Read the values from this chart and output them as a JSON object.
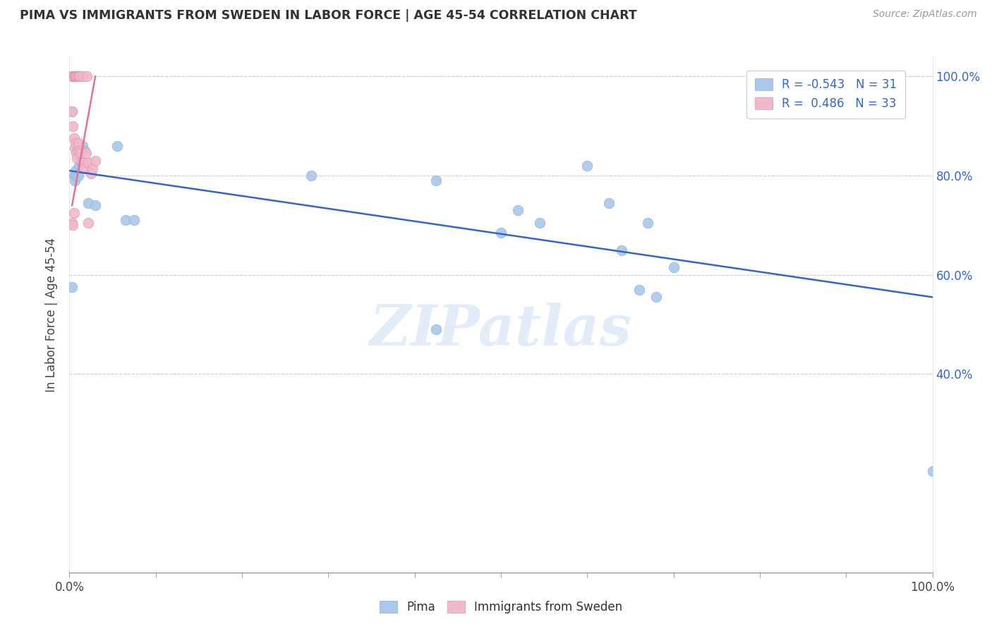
{
  "title": "PIMA VS IMMIGRANTS FROM SWEDEN IN LABOR FORCE | AGE 45-54 CORRELATION CHART",
  "source": "Source: ZipAtlas.com",
  "ylabel": "In Labor Force | Age 45-54",
  "legend_blue_label": "Pima",
  "legend_pink_label": "Immigrants from Sweden",
  "blue_R": -0.543,
  "blue_N": 31,
  "pink_R": 0.486,
  "pink_N": 33,
  "xlim": [
    0,
    1
  ],
  "ylim": [
    0,
    1.04
  ],
  "xticks": [
    0,
    0.1,
    0.2,
    0.3,
    0.4,
    0.5,
    0.6,
    0.7,
    0.8,
    0.9,
    1.0
  ],
  "yticks": [
    0.4,
    0.6,
    0.8,
    1.0
  ],
  "xticklabels_show": [
    "0.0%",
    "100.0%"
  ],
  "yticklabels_right": [
    "40.0%",
    "60.0%",
    "80.0%",
    "100.0%"
  ],
  "watermark": "ZIPatlas",
  "blue_dots": [
    [
      0.003,
      0.93
    ],
    [
      0.005,
      0.8
    ],
    [
      0.006,
      0.79
    ],
    [
      0.007,
      0.81
    ],
    [
      0.008,
      0.8
    ],
    [
      0.009,
      0.85
    ],
    [
      0.01,
      0.8
    ],
    [
      0.011,
      0.82
    ],
    [
      0.013,
      0.83
    ],
    [
      0.015,
      0.86
    ],
    [
      0.018,
      0.85
    ],
    [
      0.022,
      0.745
    ],
    [
      0.03,
      0.74
    ],
    [
      0.003,
      0.575
    ],
    [
      0.055,
      0.86
    ],
    [
      0.065,
      0.71
    ],
    [
      0.075,
      0.71
    ],
    [
      0.28,
      0.8
    ],
    [
      0.425,
      0.79
    ],
    [
      0.425,
      0.49
    ],
    [
      0.5,
      0.685
    ],
    [
      0.52,
      0.73
    ],
    [
      0.545,
      0.705
    ],
    [
      0.6,
      0.82
    ],
    [
      0.625,
      0.745
    ],
    [
      0.64,
      0.65
    ],
    [
      0.66,
      0.57
    ],
    [
      0.67,
      0.705
    ],
    [
      0.68,
      0.555
    ],
    [
      0.7,
      0.615
    ],
    [
      1.0,
      0.205
    ]
  ],
  "pink_dots": [
    [
      0.003,
      1.0
    ],
    [
      0.004,
      1.0
    ],
    [
      0.005,
      1.0
    ],
    [
      0.006,
      1.0
    ],
    [
      0.007,
      1.0
    ],
    [
      0.008,
      1.0
    ],
    [
      0.009,
      1.0
    ],
    [
      0.01,
      1.0
    ],
    [
      0.011,
      1.0
    ],
    [
      0.012,
      1.0
    ],
    [
      0.015,
      1.0
    ],
    [
      0.02,
      1.0
    ],
    [
      0.003,
      0.93
    ],
    [
      0.004,
      0.9
    ],
    [
      0.005,
      0.875
    ],
    [
      0.006,
      0.855
    ],
    [
      0.007,
      0.865
    ],
    [
      0.008,
      0.845
    ],
    [
      0.009,
      0.835
    ],
    [
      0.01,
      0.865
    ],
    [
      0.011,
      0.85
    ],
    [
      0.013,
      0.845
    ],
    [
      0.015,
      0.825
    ],
    [
      0.017,
      0.815
    ],
    [
      0.019,
      0.845
    ],
    [
      0.022,
      0.825
    ],
    [
      0.025,
      0.805
    ],
    [
      0.027,
      0.815
    ],
    [
      0.03,
      0.83
    ],
    [
      0.003,
      0.705
    ],
    [
      0.004,
      0.7
    ],
    [
      0.005,
      0.725
    ],
    [
      0.022,
      0.705
    ]
  ],
  "blue_line_x": [
    0.0,
    1.0
  ],
  "blue_line_y": [
    0.81,
    0.555
  ],
  "pink_line_x": [
    0.003,
    0.03
  ],
  "pink_line_y": [
    0.74,
    1.0
  ]
}
